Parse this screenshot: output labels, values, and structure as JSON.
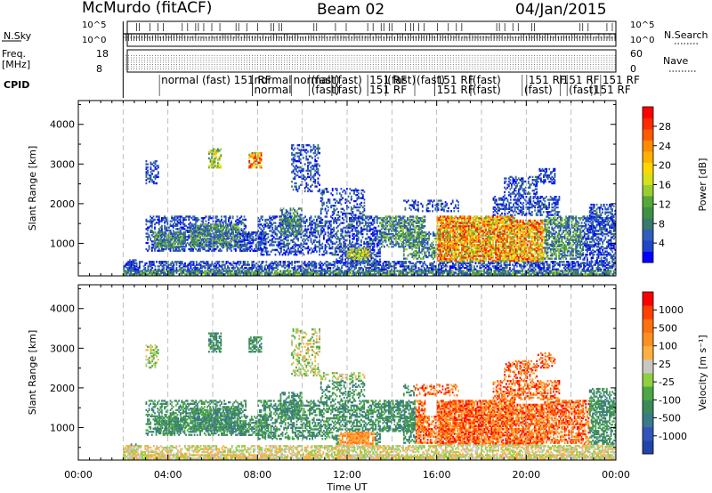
{
  "header": {
    "station": "McMurdo (fitACF)",
    "beam": "Beam 02",
    "date": "04/Jan/2015"
  },
  "summary_panel": {
    "nsky_label": "N.Sky",
    "nsky_ticks": [
      "10^5",
      "10^0"
    ],
    "nsearch_label": "N.Search",
    "nsearch_ticks": [
      "10^5",
      "10^0"
    ],
    "freq_label": "Freq.",
    "freq_unit": "[MHz]",
    "freq_ticks": [
      "18",
      "8"
    ],
    "nave_label": "Nave",
    "nave_ticks": [
      "60",
      "0"
    ],
    "cpid_label": "CPID"
  },
  "cpid_labels": [
    {
      "text": "normal (fast) 151 RF",
      "t": 3.7
    },
    {
      "text": "normal",
      "t": 7.85
    },
    {
      "text": "normal",
      "t": 7.85,
      "row": 2
    },
    {
      "text": "normal",
      "t": 9.6
    },
    {
      "text": "(fast)",
      "t": 10.4
    },
    {
      "text": "(fast)",
      "t": 10.4,
      "row": 2
    },
    {
      "text": "(fast)",
      "t": 11.4
    },
    {
      "text": "(fast)",
      "t": 11.4,
      "row": 2
    },
    {
      "text": "151 RF",
      "t": 13.0
    },
    {
      "text": "151 RF",
      "t": 13.0,
      "row": 2
    },
    {
      "text": "(fast)",
      "t": 13.8
    },
    {
      "text": "(fast)",
      "t": 15.1
    },
    {
      "text": "151 RF",
      "t": 16.0
    },
    {
      "text": "151 RF",
      "t": 16.0,
      "row": 2
    },
    {
      "text": "(fast)",
      "t": 17.6
    },
    {
      "text": "(fast)",
      "t": 17.6,
      "row": 2
    },
    {
      "text": "151 RF",
      "t": 20.1
    },
    {
      "text": "(fast)",
      "t": 19.9,
      "row": 2
    },
    {
      "text": "151 RF",
      "t": 21.6
    },
    {
      "text": "(fast)",
      "t": 21.9,
      "row": 2
    },
    {
      "text": "151 RF",
      "t": 23.4
    },
    {
      "text": "151 RF",
      "t": 23.0,
      "row": 2
    }
  ],
  "chart_data": [
    {
      "type": "heatmap",
      "name": "power",
      "xlabel": "",
      "ylabel": "Slant Range [km]",
      "xlim": [
        0,
        24
      ],
      "ylim": [
        180,
        4600
      ],
      "y_ticks": [
        1000,
        2000,
        3000,
        4000
      ],
      "colorbar": {
        "label": "Power [dB]",
        "ticks": [
          "28",
          "24",
          "20",
          "16",
          "12",
          "8",
          "4"
        ],
        "colors": [
          "#0000ff",
          "#2046c8",
          "#2f5ebf",
          "#3a7a6a",
          "#3f9045",
          "#57a83a",
          "#9acd32",
          "#d4e21a",
          "#ffd700",
          "#ffb000",
          "#ff8c00",
          "#ff5a00",
          "#ff2a00",
          "#ff0000"
        ]
      }
    },
    {
      "type": "heatmap",
      "name": "velocity",
      "xlabel": "Time UT",
      "ylabel": "Slant Range [km]",
      "xlim": [
        0,
        24
      ],
      "ylim": [
        180,
        4600
      ],
      "x_ticks": [
        "00:00",
        "04:00",
        "08:00",
        "12:00",
        "16:00",
        "20:00",
        "00:00"
      ],
      "y_ticks": [
        1000,
        2000,
        3000,
        4000
      ],
      "colorbar": {
        "label": "Velocity [m s⁻¹]",
        "ticks": [
          "1000",
          "500",
          "100",
          "25",
          "-25",
          "-100",
          "-500",
          "-1000"
        ],
        "colors": [
          "#2244aa",
          "#3355bb",
          "#3a7a8a",
          "#3c8a5a",
          "#4ca845",
          "#8fd040",
          "#c8c8c0",
          "#ffb040",
          "#ff9020",
          "#ff7010",
          "#ff4000",
          "#ff0000"
        ]
      }
    }
  ]
}
